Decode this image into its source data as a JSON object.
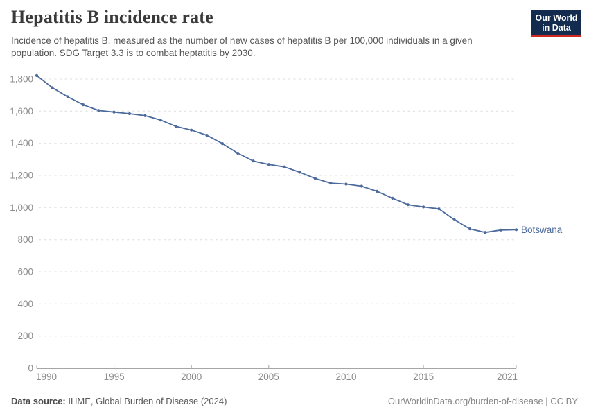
{
  "header": {
    "title": "Hepatitis B incidence rate",
    "subtitle": "Incidence of hepatitis B, measured as the number of new cases of hepatitis B per 100,000 individuals in a given population. SDG Target 3.3 is to combat heptatitis by 2030.",
    "logo": {
      "line1": "Our World",
      "line2": "in Data"
    }
  },
  "footer": {
    "source_label": "Data source:",
    "source_text": " IHME, Global Burden of Disease (2024)",
    "credit": "OurWorldinData.org/burden-of-disease | CC BY"
  },
  "colors": {
    "series_blue": "#4C6A9C",
    "logo_navy": "#122B4E",
    "logo_red": "#D0271E",
    "grid": "#DCDCDC",
    "axis": "#A6A6A6",
    "tick_text": "#8C8C8C",
    "title_text": "#3A3A3A",
    "subtitle_text": "#565656"
  },
  "chart_data": {
    "type": "line",
    "title": "Hepatitis B incidence rate",
    "xlabel": "",
    "ylabel": "",
    "x": [
      1990,
      1991,
      1992,
      1993,
      1994,
      1995,
      1996,
      1997,
      1998,
      1999,
      2000,
      2001,
      2002,
      2003,
      2004,
      2005,
      2006,
      2007,
      2008,
      2009,
      2010,
      2011,
      2012,
      2013,
      2014,
      2015,
      2016,
      2017,
      2018,
      2019,
      2020,
      2021
    ],
    "series": [
      {
        "name": "Botswana",
        "color": "#4C6A9C",
        "values": [
          1822,
          1747,
          1690,
          1640,
          1604,
          1594,
          1584,
          1572,
          1545,
          1505,
          1482,
          1450,
          1398,
          1338,
          1290,
          1268,
          1253,
          1220,
          1181,
          1152,
          1146,
          1133,
          1101,
          1058,
          1018,
          1004,
          992,
          924,
          867,
          845,
          860,
          862
        ]
      }
    ],
    "xticks": [
      1990,
      1995,
      2000,
      2005,
      2010,
      2015,
      2021
    ],
    "yticks": [
      0,
      200,
      400,
      600,
      800,
      1000,
      1200,
      1400,
      1600,
      1800
    ],
    "xlim": [
      1990,
      2021
    ],
    "ylim": [
      0,
      1870
    ],
    "grid": "horizontal-dashed",
    "legend": "end-of-line-label",
    "markers": true
  }
}
